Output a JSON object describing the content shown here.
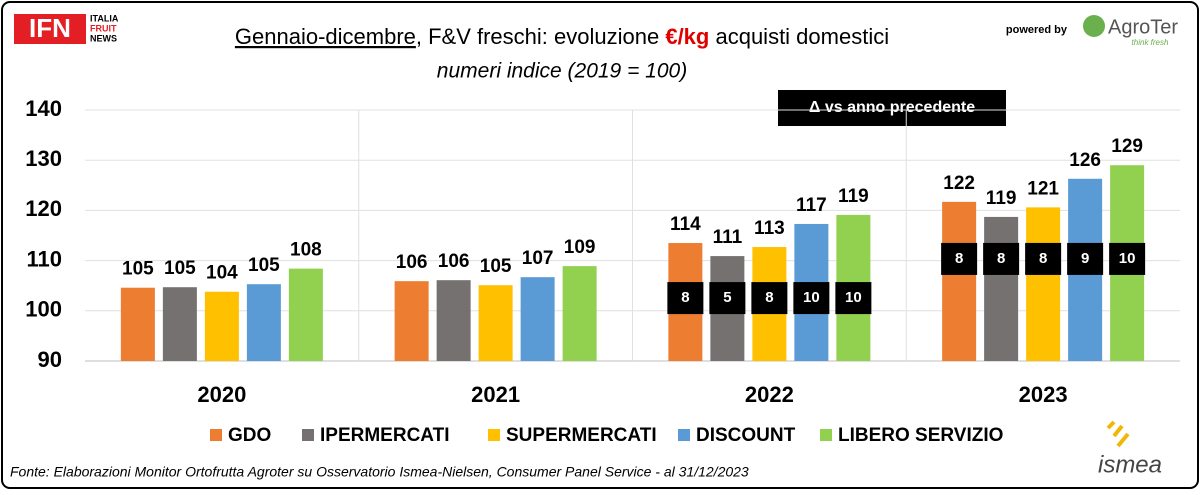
{
  "chart_data": {
    "type": "bar",
    "title": [
      "Gennaio-dicembre",
      ", F&V freschi: evoluzione ",
      "€/kg",
      " acquisti domestici"
    ],
    "subtitle": "numeri indice (2019 = 100)",
    "annotation": "Δ vs anno precedente",
    "source": "Fonte: Elaborazioni Monitor Ortofrutta Agroter su Osservatorio Ismea-Nielsen, Consumer Panel Service - al 31/12/2023",
    "categories": [
      "2020",
      "2021",
      "2022",
      "2023"
    ],
    "series": [
      {
        "name": "GDO",
        "color": "#ed7d31",
        "values": [
          104.6,
          105.9,
          113.5,
          121.7
        ],
        "value_labels": [
          "105",
          "106",
          "114",
          "122"
        ],
        "deltas": [
          null,
          null,
          8,
          8
        ]
      },
      {
        "name": "IPERMERCATI",
        "color": "#767171",
        "values": [
          104.7,
          106.1,
          110.9,
          118.7
        ],
        "value_labels": [
          "105",
          "106",
          "111",
          "119"
        ],
        "deltas": [
          null,
          null,
          5,
          8
        ]
      },
      {
        "name": "SUPERMERCATI",
        "color": "#ffc000",
        "values": [
          103.8,
          105.1,
          112.7,
          120.6
        ],
        "value_labels": [
          "104",
          "105",
          "113",
          "121"
        ],
        "deltas": [
          null,
          null,
          8,
          8
        ]
      },
      {
        "name": "DISCOUNT",
        "color": "#5b9bd5",
        "values": [
          105.3,
          106.7,
          117.3,
          126.3
        ],
        "value_labels": [
          "105",
          "107",
          "117",
          "126"
        ],
        "deltas": [
          null,
          null,
          10,
          9
        ]
      },
      {
        "name": "LIBERO SERVIZIO",
        "color": "#92d050",
        "values": [
          108.4,
          108.9,
          119.1,
          129.0
        ],
        "value_labels": [
          "108",
          "109",
          "119",
          "129"
        ],
        "deltas": [
          null,
          null,
          10,
          10
        ]
      }
    ],
    "ylim": [
      90,
      140
    ],
    "yticks": [
      90,
      100,
      110,
      120,
      130,
      140
    ],
    "grid": true
  },
  "branding": {
    "ifn": "IFN",
    "ifn_lines": [
      "ITALIA",
      "FRUIT",
      "NEWS"
    ],
    "powered_by": "powered by",
    "agroter": "AgroTer",
    "agroter_tag": "think fresh",
    "ismea": "ismea"
  }
}
